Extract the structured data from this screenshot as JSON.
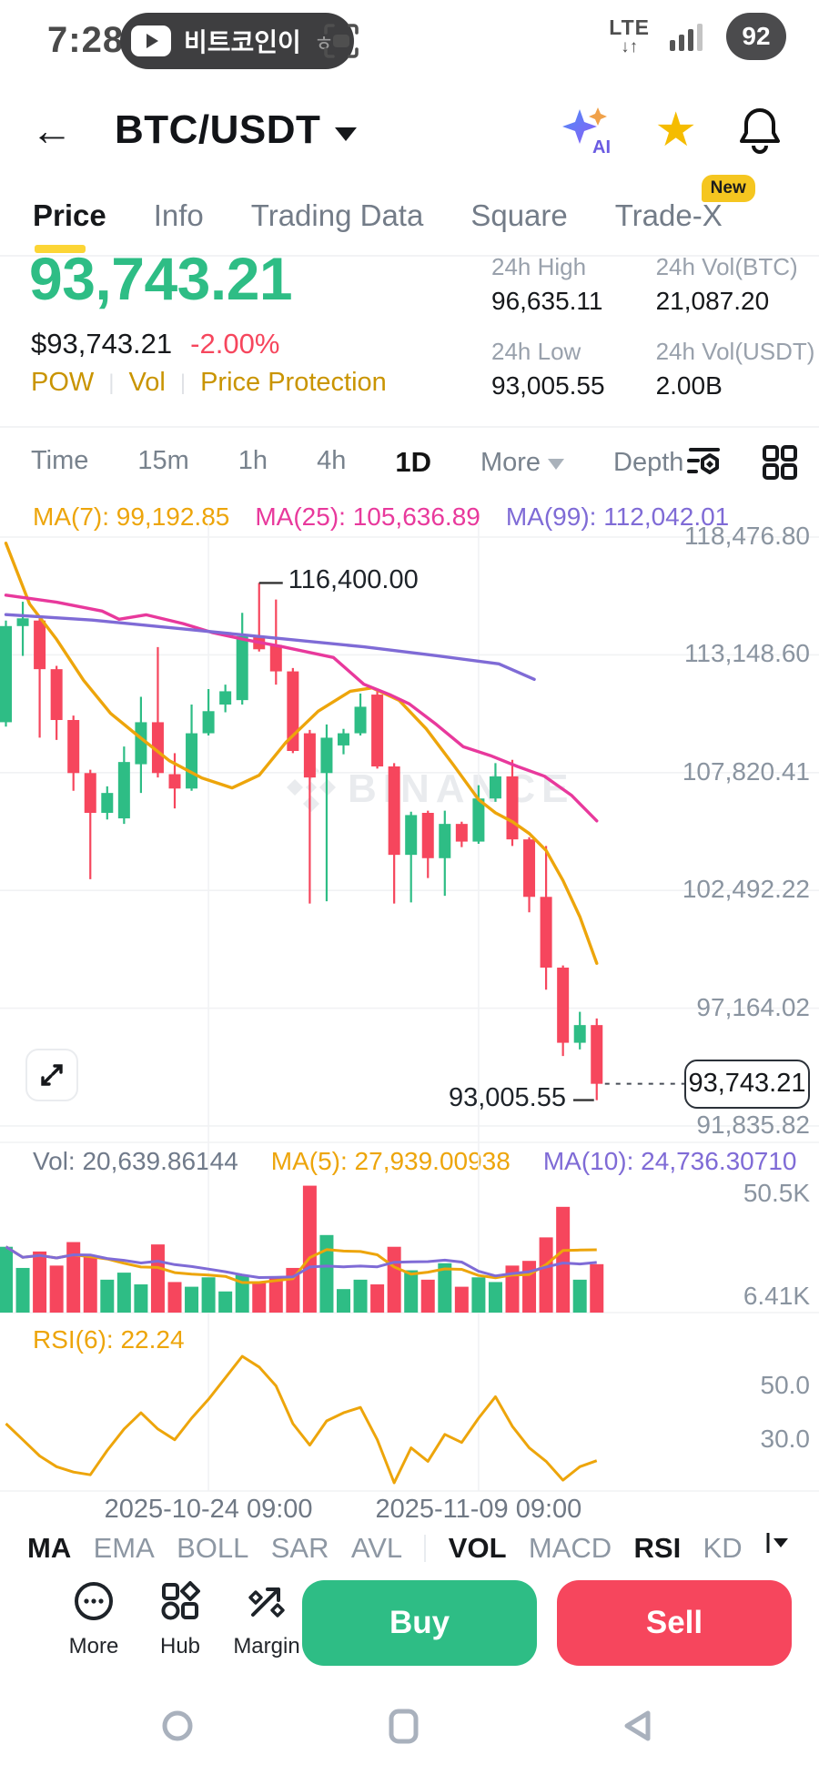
{
  "status_bar": {
    "time": "7:28",
    "media_title": "비트코인이",
    "media_suffix": "ㅎ",
    "network": "LTE",
    "network_arrows": "↓↑",
    "battery": "92"
  },
  "header": {
    "pair": "BTC/USDT"
  },
  "tabs": [
    {
      "label": "Price",
      "active": true
    },
    {
      "label": "Info",
      "active": false
    },
    {
      "label": "Trading Data",
      "active": false
    },
    {
      "label": "Square",
      "active": false
    },
    {
      "label": "Trade-X",
      "active": false,
      "badge": "New"
    }
  ],
  "ticker": {
    "last_price": "93,743.21",
    "fiat_price": "$93,743.21",
    "change_pct": "-2.00%",
    "links": [
      "POW",
      "Vol",
      "Price Protection"
    ]
  },
  "stats": [
    {
      "label": "24h High",
      "value": "96,635.11"
    },
    {
      "label": "24h Low",
      "value": "93,005.55"
    },
    {
      "label": "24h Vol(BTC)",
      "value": "21,087.20"
    },
    {
      "label": "24h Vol(USDT)",
      "value": "2.00B"
    }
  ],
  "toolbar": {
    "intervals": [
      "Time",
      "15m",
      "1h",
      "4h",
      "1D"
    ],
    "active_interval": "1D",
    "more_label": "More",
    "depth_label": "Depth"
  },
  "overlay_labels": {
    "ma7": "MA(7): 99,192.85",
    "ma25": "MA(25): 105,636.89",
    "ma99": "MA(99): 112,042.01",
    "vol": "Vol: 20,639.86144",
    "vol_ma5": "MA(5): 27,939.00938",
    "vol_ma10": "MA(10): 24,736.30710",
    "rsi": "RSI(6): 22.24"
  },
  "indicator_bar": [
    {
      "label": "MA",
      "active": true
    },
    {
      "label": "EMA",
      "active": false
    },
    {
      "label": "BOLL",
      "active": false
    },
    {
      "label": "SAR",
      "active": false
    },
    {
      "label": "AVL",
      "active": false
    },
    {
      "label": "VOL",
      "active": true
    },
    {
      "label": "MACD",
      "active": false
    },
    {
      "label": "RSI",
      "active": true
    },
    {
      "label": "KD",
      "active": false
    }
  ],
  "bottom_bar": {
    "actions": [
      {
        "label": "More",
        "icon": "more-icon"
      },
      {
        "label": "Hub",
        "icon": "hub-icon"
      },
      {
        "label": "Margin",
        "icon": "margin-icon"
      }
    ],
    "buy_label": "Buy",
    "sell_label": "Sell"
  },
  "colors": {
    "green": "#2ebd85",
    "red": "#f6465d",
    "gold_link": "#c99400",
    "yellow_accent": "#fcd535",
    "ma_yellow": "#eda50b",
    "ma_pink": "#e8399c",
    "ma_purple": "#7f6bd6",
    "text_dark": "#1e2329",
    "text_gray": "#707a8a",
    "axis_gray": "#8a94a0",
    "grid": "#f1f2f4",
    "watermark": "#e9ebee",
    "nav_icon": "#a9b1bd"
  },
  "chart_data": {
    "type": "candlestick",
    "pair": "BTC/USDT",
    "interval": "1D",
    "title": "BTC/USDT 1D candlestick chart with MA(7), MA(25), MA(99), volume and RSI(6)",
    "price_axis": {
      "labels": [
        "118,476.80",
        "113,148.60",
        "107,820.41",
        "102,492.22",
        "97,164.02",
        "91,835.82"
      ],
      "values": [
        118476.8,
        113148.6,
        107820.41,
        102492.22,
        97164.02,
        91835.82
      ],
      "range": [
        91300,
        119300
      ]
    },
    "x_ticks": [
      {
        "index": 12,
        "label": "2025-10-24 09:00"
      },
      {
        "index": 28,
        "label": "2025-11-09 09:00"
      }
    ],
    "candles_ohlc": [
      [
        110100,
        114700,
        109900,
        114450
      ],
      [
        114450,
        115550,
        113100,
        114800
      ],
      [
        114700,
        114900,
        109400,
        112500
      ],
      [
        112500,
        112650,
        109300,
        110200
      ],
      [
        110200,
        110400,
        107000,
        107800
      ],
      [
        107800,
        107950,
        103000,
        106000
      ],
      [
        106000,
        107200,
        105700,
        106900
      ],
      [
        105750,
        109000,
        105500,
        108300
      ],
      [
        108200,
        111250,
        106900,
        110100
      ],
      [
        110100,
        113500,
        107600,
        107800
      ],
      [
        107750,
        108700,
        106200,
        107100
      ],
      [
        107100,
        110900,
        107000,
        109600
      ],
      [
        109600,
        111600,
        109500,
        110600
      ],
      [
        110900,
        111800,
        110550,
        111500
      ],
      [
        111100,
        115050,
        110900,
        114000
      ],
      [
        114000,
        116400,
        113300,
        113400
      ],
      [
        113600,
        115650,
        111800,
        112400
      ],
      [
        112400,
        112550,
        108700,
        108800
      ],
      [
        109600,
        109750,
        101900,
        107600
      ],
      [
        107800,
        110000,
        102000,
        109400
      ],
      [
        109050,
        109800,
        108650,
        109600
      ],
      [
        109600,
        111400,
        109500,
        110800
      ],
      [
        111350,
        111500,
        108000,
        108100
      ],
      [
        108100,
        108250,
        101900,
        104100
      ],
      [
        104100,
        106050,
        101950,
        105900
      ],
      [
        106000,
        106100,
        103050,
        103950
      ],
      [
        103950,
        106100,
        102250,
        105500
      ],
      [
        105500,
        105600,
        104450,
        104700
      ],
      [
        104700,
        107250,
        104600,
        106650
      ],
      [
        106650,
        108250,
        106500,
        107650
      ],
      [
        107650,
        108400,
        104500,
        104800
      ],
      [
        104800,
        104900,
        101500,
        102200
      ],
      [
        102200,
        104500,
        98000,
        99000
      ],
      [
        99000,
        99100,
        95000,
        95600
      ],
      [
        95600,
        97000,
        95300,
        96400
      ],
      [
        96400,
        96700,
        93005.55,
        93743.21
      ]
    ],
    "volume": {
      "values_k": [
        28,
        19,
        26,
        20,
        30,
        24,
        14,
        17,
        12,
        29,
        13,
        11,
        15,
        9,
        16,
        13,
        15,
        19,
        54,
        33,
        10,
        14,
        12,
        28,
        18,
        14,
        21,
        11,
        15,
        13,
        20,
        22,
        32,
        45,
        14,
        20.6
      ],
      "axis_labels": [
        {
          "value": 50.5,
          "label": "50.5K"
        },
        {
          "value": 6.41,
          "label": "6.41K"
        }
      ],
      "max_k": 55
    },
    "rsi6": {
      "values": [
        36,
        30,
        24,
        20,
        18,
        17,
        26,
        34,
        40,
        34,
        30,
        38,
        45,
        53,
        61,
        57,
        50,
        36,
        28,
        37,
        40,
        42,
        30,
        14,
        27,
        22,
        32,
        29,
        38,
        46,
        35,
        27,
        22,
        15,
        20,
        22.24
      ],
      "axis_labels": [
        {
          "value": 50,
          "label": "50.0"
        },
        {
          "value": 30,
          "label": "30.0"
        }
      ],
      "range": [
        13,
        61
      ]
    },
    "ma_overlays": [
      {
        "name": "MA(7)",
        "color_key": "ma_yellow",
        "points": [
          [
            0,
            118200
          ],
          [
            1.4,
            115450
          ],
          [
            3,
            113850
          ],
          [
            4.6,
            112000
          ],
          [
            6.2,
            110500
          ],
          [
            7.8,
            109500
          ],
          [
            9.7,
            108350
          ],
          [
            11.6,
            107580
          ],
          [
            13.4,
            107130
          ],
          [
            15,
            107700
          ],
          [
            16.6,
            109200
          ],
          [
            18.5,
            110600
          ],
          [
            20.4,
            111500
          ],
          [
            21.7,
            111655
          ],
          [
            23.3,
            111090
          ],
          [
            24.9,
            109800
          ],
          [
            26.5,
            108180
          ],
          [
            28,
            106600
          ],
          [
            29,
            106000
          ],
          [
            30,
            105600
          ],
          [
            31,
            105064
          ],
          [
            32,
            104300
          ],
          [
            33,
            102943
          ],
          [
            34,
            101300
          ],
          [
            35,
            99192.85
          ]
        ]
      },
      {
        "name": "MA(25)",
        "color_key": "ma_pink",
        "points": [
          [
            0,
            115850
          ],
          [
            3,
            115530
          ],
          [
            5.7,
            115130
          ],
          [
            6.7,
            114760
          ],
          [
            8.3,
            114960
          ],
          [
            10.5,
            114560
          ],
          [
            12.2,
            114160
          ],
          [
            14.2,
            113830
          ],
          [
            16.4,
            113510
          ],
          [
            19.4,
            113030
          ],
          [
            21.2,
            111820
          ],
          [
            22.8,
            111330
          ],
          [
            23.9,
            110930
          ],
          [
            25.5,
            110000
          ],
          [
            27.1,
            108990
          ],
          [
            28.7,
            108590
          ],
          [
            30.3,
            108100
          ],
          [
            31.9,
            107660
          ],
          [
            33.5,
            106800
          ],
          [
            35,
            105636.89
          ]
        ]
      },
      {
        "name": "MA(99)",
        "color_key": "ma_purple",
        "points": [
          [
            0,
            114970
          ],
          [
            5.1,
            114720
          ],
          [
            10.5,
            114320
          ],
          [
            15.8,
            113920
          ],
          [
            21.2,
            113510
          ],
          [
            25.5,
            113110
          ],
          [
            29.2,
            112740
          ],
          [
            31.3,
            112042.01
          ]
        ]
      }
    ],
    "annotations": {
      "high": {
        "index": 15,
        "price": 116400.0,
        "label": "116,400.00"
      },
      "low": {
        "index": 35,
        "price": 93005.55,
        "label": "93,005.55"
      },
      "last": {
        "price": 93743.21,
        "label": "93,743.21"
      }
    },
    "watermark": "BINANCE",
    "legend_position": "top-left",
    "grid": true
  }
}
